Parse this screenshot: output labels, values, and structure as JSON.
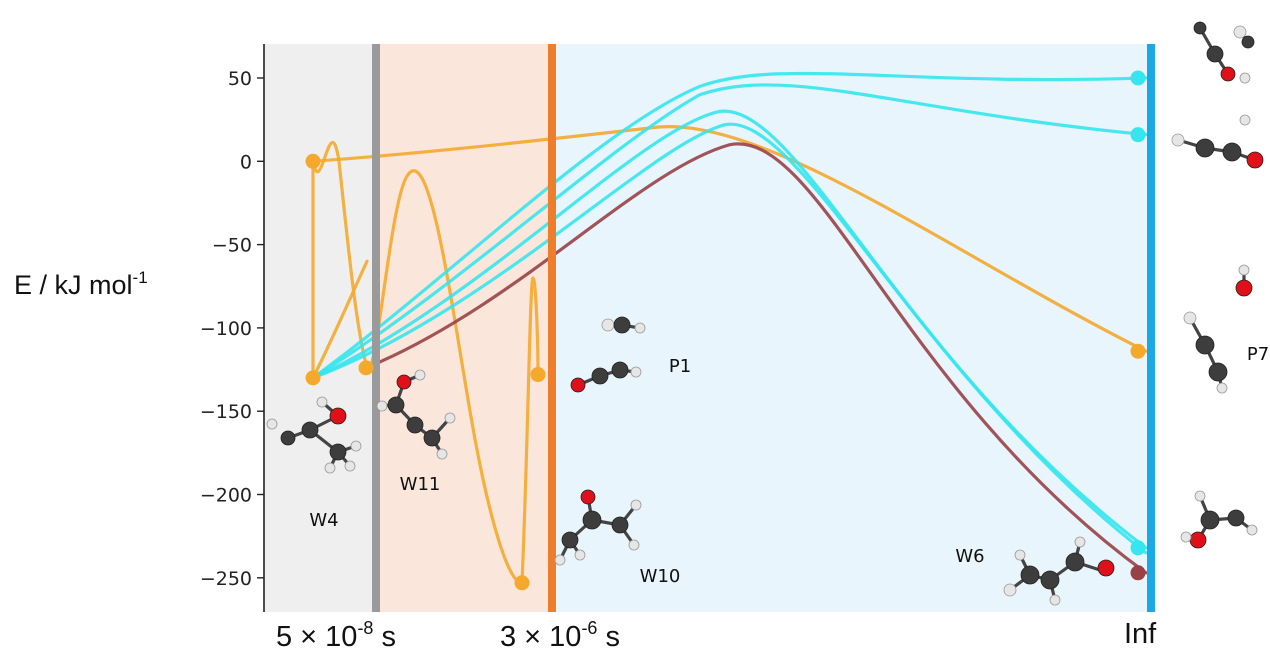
{
  "chart_data": {
    "type": "line",
    "ylabel": {
      "text": "E / kJ mol",
      "sup": "-1"
    },
    "ylim": [
      -270,
      70
    ],
    "yticks": [
      50,
      0,
      -50,
      -100,
      -150,
      -200,
      -250
    ],
    "ytick_labels": [
      "50",
      "0",
      "−50",
      "−100",
      "−150",
      "−200",
      "−250"
    ],
    "x_ticks": [
      {
        "base": "5 × 10",
        "sup": "-8",
        "unit": " s"
      },
      {
        "base": "3 × 10",
        "sup": "-6",
        "unit": " s"
      },
      {
        "plain": "Inf"
      }
    ],
    "regions": [
      {
        "name": "region-1",
        "color": "#efefef",
        "divider_color": "#9a9a9a"
      },
      {
        "name": "region-2",
        "color": "#fbe6db",
        "divider_color": "#ee7d2c"
      },
      {
        "name": "region-3",
        "color": "#e8f5fc",
        "divider_color": "#1aa9e4"
      }
    ],
    "species_labels": [
      "W4",
      "W11",
      "P1",
      "W10",
      "W6",
      "P7"
    ],
    "colors": {
      "orange": "#f4a92d",
      "cyan": "#35e6ee",
      "maroon": "#984247"
    },
    "series": [
      {
        "color": "#f4a92d",
        "energies": [
          -130,
          0,
          5,
          -125
        ],
        "kind": "isomerization"
      },
      {
        "color": "#f4a92d",
        "energies": [
          -125,
          -10,
          -255
        ],
        "kind": "isomerization"
      },
      {
        "color": "#f4a92d",
        "energies": [
          -253,
          -70,
          -128
        ],
        "kind": "isomerization"
      },
      {
        "color": "#f4a92d",
        "energies": [
          0,
          20,
          -115
        ],
        "kind": "to-product"
      },
      {
        "color": "#35e6ee",
        "energies": [
          -130,
          55,
          50
        ],
        "kind": "to-product"
      },
      {
        "color": "#35e6ee",
        "energies": [
          -130,
          50,
          16
        ],
        "kind": "to-product"
      },
      {
        "color": "#35e6ee",
        "energies": [
          -130,
          30,
          -232
        ],
        "kind": "to-product"
      },
      {
        "color": "#35e6ee",
        "energies": [
          -130,
          25,
          -235
        ],
        "kind": "to-product"
      },
      {
        "color": "#984247",
        "energies": [
          -123,
          10,
          -247
        ],
        "kind": "to-product"
      }
    ],
    "endpoints": [
      {
        "color": "#f4a92d",
        "y": 0,
        "slot": "W4"
      },
      {
        "color": "#f4a92d",
        "y": -130,
        "slot": "W4"
      },
      {
        "color": "#f4a92d",
        "y": -124,
        "slot": "W11"
      },
      {
        "color": "#f4a92d",
        "y": -253,
        "slot": "W11b"
      },
      {
        "color": "#f4a92d",
        "y": -128,
        "slot": "W10"
      },
      {
        "color": "#35e6ee",
        "y": 50,
        "slot": "end"
      },
      {
        "color": "#35e6ee",
        "y": 16,
        "slot": "end"
      },
      {
        "color": "#f4a92d",
        "y": -114,
        "slot": "end"
      },
      {
        "color": "#35e6ee",
        "y": -232,
        "slot": "end"
      },
      {
        "color": "#984247",
        "y": -247,
        "slot": "end"
      }
    ]
  }
}
